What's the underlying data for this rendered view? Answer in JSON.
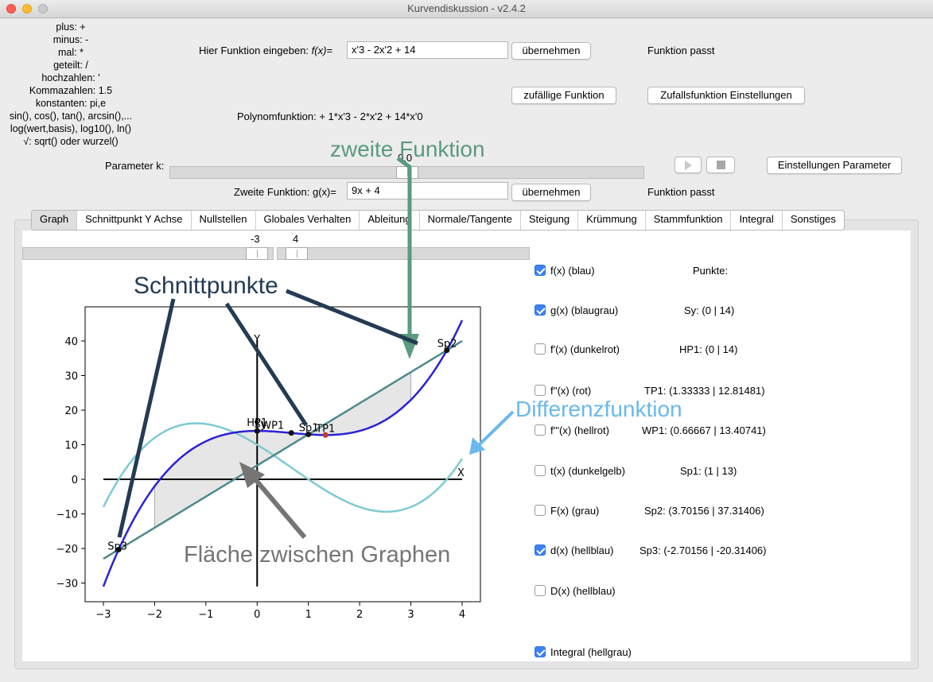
{
  "window": {
    "title": "Kurvendiskussion - v2.4.2"
  },
  "help": {
    "lines": [
      "plus: +",
      "minus: -",
      "mal: *",
      "geteilt: /",
      "hochzahlen: '",
      "Kommazahlen: 1.5",
      "konstanten: pi,e",
      "sin(), cos(), tan(), arcsin(),...",
      "log(wert,basis), log10(), ln()",
      "√: sqrt() oder wurzel()"
    ]
  },
  "function_input": {
    "label": "Hier Funktion eingeben:",
    "symbol": "f(x)=",
    "value": "x'3 - 2x'2 + 14",
    "apply_label": "übernehmen",
    "status": "Funktion passt"
  },
  "random": {
    "button_label": "zufällige Funktion",
    "settings_label": "Zufallsfunktion Einstellungen"
  },
  "polynomial": {
    "text": "Polynomfunktion: + 1*x'3 - 2*x'2 + 14*x'0"
  },
  "parameter": {
    "label": "Parameter k:",
    "value": "0.0",
    "fraction": 0.5,
    "settings_label": "Einstellungen Parameter",
    "play_icon": "play-icon",
    "stop_icon": "stop-icon"
  },
  "second_function": {
    "label": "Zweite Funktion:",
    "symbol": "g(x)=",
    "value": "9x + 4",
    "apply_label": "übernehmen",
    "status": "Funktion passt"
  },
  "tabs": [
    {
      "label": "Graph",
      "active": true
    },
    {
      "label": "Schnittpunkt Y Achse",
      "active": false
    },
    {
      "label": "Nullstellen",
      "active": false
    },
    {
      "label": "Globales Verhalten",
      "active": false
    },
    {
      "label": "Ableitung",
      "active": false
    },
    {
      "label": "Normale/Tangente",
      "active": false
    },
    {
      "label": "Steigung",
      "active": false
    },
    {
      "label": "Krümmung",
      "active": false
    },
    {
      "label": "Stammfunktion",
      "active": false
    },
    {
      "label": "Integral",
      "active": false
    },
    {
      "label": "Sonstiges",
      "active": false
    }
  ],
  "range": {
    "min": -3,
    "max": 4,
    "min_label": "-3",
    "max_label": "4"
  },
  "checkboxes": [
    {
      "label": "f(x) (blau)",
      "checked": true
    },
    {
      "label": "g(x) (blaugrau)",
      "checked": true
    },
    {
      "label": "f'(x) (dunkelrot)",
      "checked": false
    },
    {
      "label": "f''(x) (rot)",
      "checked": false
    },
    {
      "label": "f'''(x) (hellrot)",
      "checked": false
    },
    {
      "label": "t(x) (dunkelgelb)",
      "checked": false
    },
    {
      "label": "F(x) (grau)",
      "checked": false
    },
    {
      "label": "d(x) (hellblau)",
      "checked": true
    },
    {
      "label": "D(x) (hellblau)",
      "checked": false
    },
    {
      "label": "Integral (hellgrau)",
      "checked": true
    }
  ],
  "points": {
    "header": "Punkte:",
    "items": [
      "Sy: (0 | 14)",
      "HP1: (0 | 14)",
      "TP1: (1.33333 | 12.81481)",
      "WP1: (0.66667 | 13.40741)",
      "Sp1: (1 | 13)",
      "Sp2: (3.70156 | 37.31406)",
      "Sp3: (-2.70156 | -20.31406)"
    ]
  },
  "annotations": {
    "zweite": "zweite Funktion",
    "schnitt": "Schnittpunkte",
    "differenz": "Differenzfunktion",
    "flaeche": "Fläche zwischen Graphen"
  },
  "colors": {
    "f": "#2a22d6",
    "g": "#4e8a8c",
    "d": "#7ccbd2",
    "fill": "#e6e6e6",
    "ann_green": "#5a9a7e",
    "ann_navy": "#243b54",
    "ann_blue": "#6ab8ee",
    "ann_gray": "#757575"
  },
  "chart_data": {
    "type": "line",
    "series": [
      {
        "name": "f(x)",
        "formula": "x^3 - 2x^2 + 14"
      },
      {
        "name": "g(x)",
        "formula": "9x + 4"
      },
      {
        "name": "d(x)",
        "formula": "x^3 - 2x^2 - 9x + 10"
      }
    ],
    "shaded_interval": [
      -2,
      3
    ],
    "xlim": [
      -3,
      4
    ],
    "ylim": [
      -31,
      40
    ],
    "x_ticks": [
      -3,
      -2,
      -1,
      0,
      1,
      2,
      3,
      4
    ],
    "y_ticks": [
      -30,
      -20,
      -10,
      0,
      10,
      20,
      30,
      40
    ],
    "axis_labels": {
      "x": "X",
      "y": "Y"
    },
    "points": [
      {
        "label": "Sy",
        "x": 0,
        "y": 14
      },
      {
        "label": "HP1",
        "x": 0,
        "y": 14
      },
      {
        "label": "TP1",
        "x": 1.33333,
        "y": 12.81481
      },
      {
        "label": "WP1",
        "x": 0.66667,
        "y": 13.40741
      },
      {
        "label": "Sp1",
        "x": 1,
        "y": 13
      },
      {
        "label": "Sp2",
        "x": 3.70156,
        "y": 37.31406
      },
      {
        "label": "Sp3",
        "x": -2.70156,
        "y": -20.31406
      }
    ]
  }
}
